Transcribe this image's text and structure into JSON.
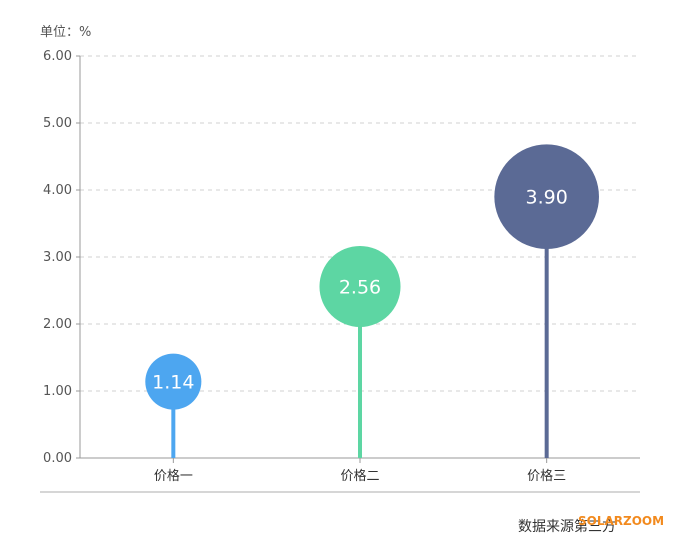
{
  "chart_data": {
    "type": "lollipop-bubble",
    "unit_label": "单位：%",
    "categories": [
      "价格一",
      "价格二",
      "价格三"
    ],
    "values": [
      1.14,
      2.56,
      3.9
    ],
    "value_labels": [
      "1.14",
      "2.56",
      "3.90"
    ],
    "colors": [
      "#4da6f0",
      "#5dd6a3",
      "#5b6a95"
    ],
    "ylim": [
      0,
      6
    ],
    "y_ticks": [
      "0.00",
      "1.00",
      "2.00",
      "3.00",
      "4.00",
      "5.00",
      "6.00"
    ],
    "grid": true,
    "grid_style": "dashed"
  },
  "footer": {
    "source": "数据来源第三方",
    "watermark": "SOLARZOOM"
  }
}
